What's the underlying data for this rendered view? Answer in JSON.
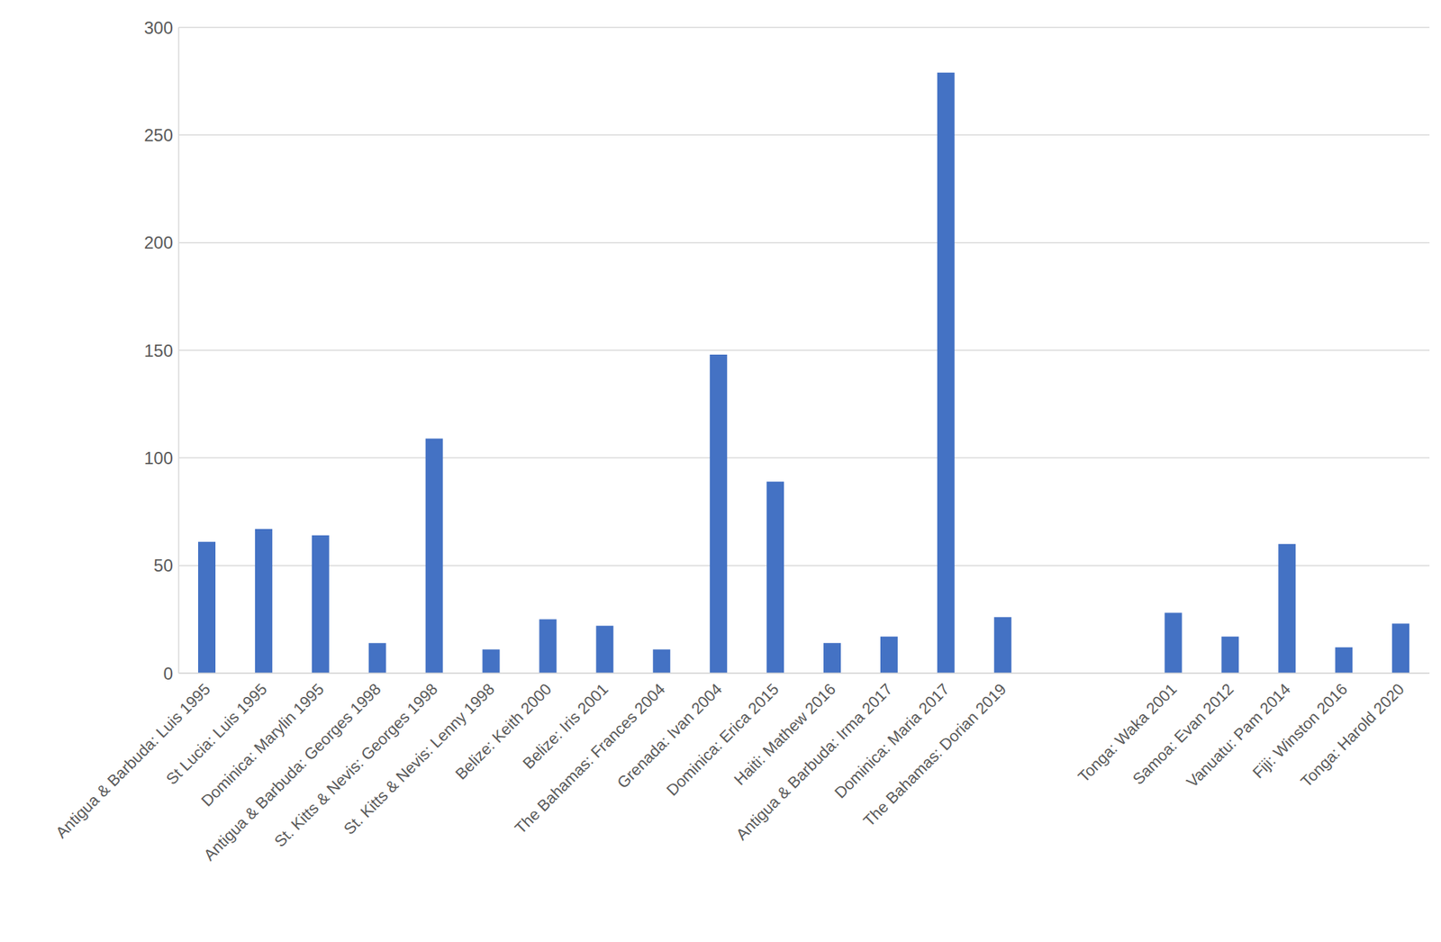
{
  "chart_data": {
    "type": "bar",
    "categories": [
      "Antigua & Barbuda: Luis 1995",
      "St Lucia: Luis 1995",
      "Dominica: Marylin 1995",
      "Antigua & Barbuda: Georges 1998",
      "St. Kitts & Nevis: Georges 1998",
      "St. Kitts & Nevis: Lenny 1998",
      "Belize: Keith 2000",
      "Belize: Iris 2001",
      "The Bahamas: Frances 2004",
      "Grenada: Ivan 2004",
      "Dominica: Erica 2015",
      "Haiti: Mathew 2016",
      "Antigua & Barbuda: Irma 2017",
      "Dominica: Maria 2017",
      "The Bahamas: Dorian 2019",
      null,
      null,
      "Tonga: Waka 2001",
      "Samoa: Evan 2012",
      "Vanuatu: Pam 2014",
      "Fiji: Winston 2016",
      "Tonga: Harold 2020"
    ],
    "values": [
      61,
      67,
      64,
      14,
      109,
      11,
      25,
      22,
      11,
      148,
      89,
      14,
      17,
      279,
      26,
      null,
      null,
      28,
      17,
      60,
      12,
      23
    ],
    "color": "#4472c4",
    "ylim": [
      0,
      300
    ],
    "yticks": [
      0,
      50,
      100,
      150,
      200,
      250,
      300
    ],
    "grid": true
  }
}
